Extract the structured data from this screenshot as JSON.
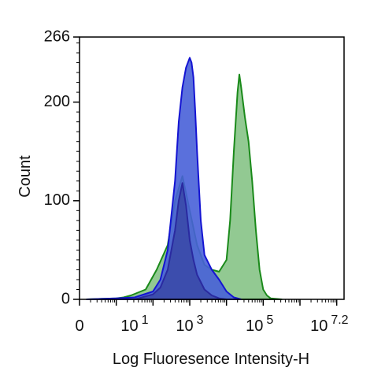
{
  "chart_data": {
    "type": "area",
    "title": "",
    "xlabel": "Log Fluoresence Intensity-H",
    "ylabel": "Count",
    "x_scale": "log10",
    "xlim": [
      0,
      7.2
    ],
    "ylim": [
      0,
      266
    ],
    "grid": false,
    "legend": "none",
    "x_ticks": [
      {
        "base": "0",
        "exp": ""
      },
      {
        "base": "10",
        "exp": "1"
      },
      {
        "base": "10",
        "exp": "3"
      },
      {
        "base": "10",
        "exp": "5"
      },
      {
        "base": "10",
        "exp": "7.2"
      }
    ],
    "y_ticks": [
      "0",
      "100",
      "200",
      "266"
    ],
    "series": [
      {
        "color": "#1a8a1a",
        "fill": "#7fc07f",
        "x": [
          0.2,
          1.0,
          1.2,
          1.4,
          1.8,
          2.1,
          2.4,
          2.6,
          2.8,
          3.0,
          3.2,
          3.4,
          3.6,
          3.8,
          4.0,
          4.1,
          4.2,
          4.3,
          4.35,
          4.4,
          4.5,
          4.6,
          4.7,
          4.8,
          4.9,
          5.0,
          5.1,
          5.2,
          5.5
        ],
        "y": [
          0,
          1,
          2,
          4,
          10,
          30,
          55,
          100,
          125,
          90,
          55,
          35,
          30,
          28,
          40,
          80,
          150,
          210,
          228,
          215,
          185,
          160,
          120,
          70,
          30,
          10,
          4,
          1,
          0
        ]
      },
      {
        "color": "#1414d2",
        "fill": "#4860d8",
        "x": [
          0.2,
          1.0,
          1.5,
          2.0,
          2.2,
          2.4,
          2.6,
          2.7,
          2.8,
          2.9,
          3.0,
          3.05,
          3.1,
          3.15,
          3.2,
          3.3,
          3.4,
          3.6,
          3.8,
          4.0,
          4.2,
          4.4
        ],
        "y": [
          0,
          1,
          2,
          8,
          20,
          50,
          120,
          180,
          215,
          235,
          245,
          240,
          225,
          190,
          150,
          80,
          45,
          30,
          20,
          8,
          2,
          0
        ]
      },
      {
        "color": "#2a2aa0",
        "fill": "#3a4aa8",
        "x": [
          1.5,
          2.0,
          2.2,
          2.4,
          2.6,
          2.7,
          2.8,
          2.9,
          3.0,
          3.1,
          3.2,
          3.4,
          3.6,
          3.8,
          4.0
        ],
        "y": [
          0,
          5,
          12,
          30,
          70,
          100,
          118,
          95,
          60,
          40,
          25,
          10,
          4,
          1,
          0
        ]
      }
    ]
  }
}
